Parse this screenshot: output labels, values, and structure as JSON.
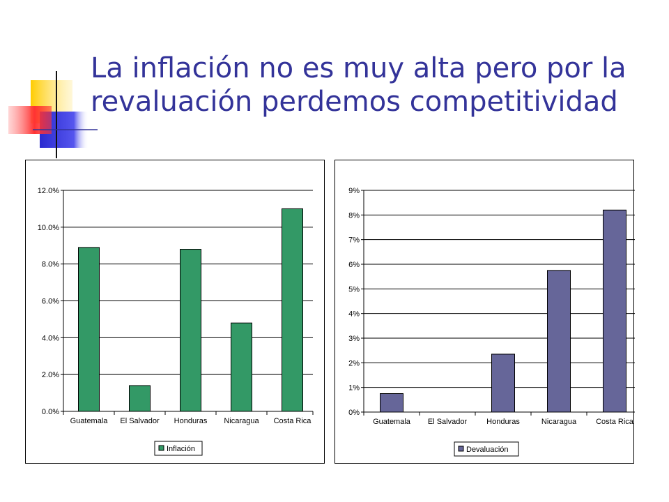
{
  "slide": {
    "title_line1": "La inflación no es muy alta pero por la",
    "title_line2": "revaluación perdemos competitividad",
    "title_color": "#333399"
  },
  "chart_data": [
    {
      "type": "bar",
      "title": "",
      "categories": [
        "Guatemala",
        "El Salvador",
        "Honduras",
        "Nicaragua",
        "Costa Rica"
      ],
      "series": [
        {
          "name": "Inflación",
          "values": [
            8.9,
            1.4,
            8.8,
            4.8,
            11.0
          ],
          "color": "#339966"
        }
      ],
      "y_ticks": [
        "0.0%",
        "2.0%",
        "4.0%",
        "6.0%",
        "8.0%",
        "10.0%",
        "12.0%"
      ],
      "ylim": [
        0,
        12
      ],
      "xlabel": "",
      "ylabel": "",
      "grid": true,
      "legend_position": "bottom"
    },
    {
      "type": "bar",
      "title": "",
      "categories": [
        "Guatemala",
        "El Salvador",
        "Honduras",
        "Nicaragua",
        "Costa Rica"
      ],
      "series": [
        {
          "name": "Devaluación",
          "values": [
            0.75,
            0,
            2.35,
            5.75,
            8.2
          ],
          "color": "#666699"
        }
      ],
      "y_ticks": [
        "0%",
        "1%",
        "2%",
        "3%",
        "4%",
        "5%",
        "6%",
        "7%",
        "8%",
        "9%"
      ],
      "ylim": [
        0,
        9
      ],
      "xlabel": "",
      "ylabel": "",
      "grid": true,
      "legend_position": "bottom"
    }
  ]
}
